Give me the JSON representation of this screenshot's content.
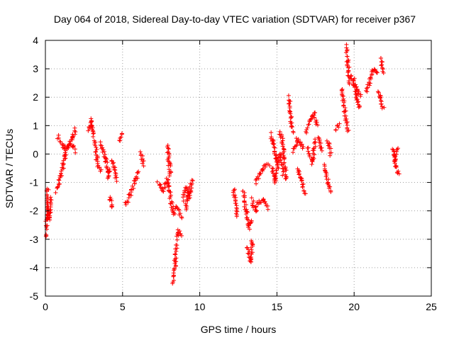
{
  "chart_data": {
    "type": "scatter",
    "title": "Day 064 of 2018, Sidereal Day-to-day VTEC variation (SDTVAR) for receiver p367",
    "xlabel": "GPS time / hours",
    "ylabel": "SDTVAR / TECUs",
    "xlim": [
      0,
      25
    ],
    "ylim": [
      -5,
      4
    ],
    "grid": true,
    "marker": "plus",
    "color": "#ff0000",
    "xticks": [
      0,
      5,
      10,
      15,
      20,
      25
    ],
    "yticks": [
      -5,
      -4,
      -3,
      -2,
      -1,
      0,
      1,
      2,
      3,
      4
    ],
    "segments": [
      {
        "x": [
          0.0,
          0.1,
          0.15
        ],
        "y": [
          -2.9,
          -2.3,
          -1.2
        ]
      },
      {
        "x": [
          0.15,
          0.25,
          0.35
        ],
        "y": [
          -1.7,
          -2.3,
          -1.5
        ]
      },
      {
        "x": [
          0.7,
          1.0,
          1.3,
          1.7,
          1.95
        ],
        "y": [
          -1.3,
          -0.8,
          0.0,
          0.5,
          0.9
        ]
      },
      {
        "x": [
          0.8,
          1.2,
          1.6,
          1.9
        ],
        "y": [
          0.6,
          0.2,
          0.4,
          0.1
        ]
      },
      {
        "x": [
          2.8,
          3.0,
          3.1
        ],
        "y": [
          0.8,
          1.2,
          0.6
        ]
      },
      {
        "x": [
          3.2,
          3.4,
          3.6
        ],
        "y": [
          0.5,
          -0.4,
          -0.6
        ]
      },
      {
        "x": [
          3.6,
          3.9,
          4.1,
          4.2
        ],
        "y": [
          0.4,
          -0.2,
          -0.8,
          -0.5
        ]
      },
      {
        "x": [
          4.2,
          4.3
        ],
        "y": [
          -1.5,
          -1.9
        ]
      },
      {
        "x": [
          4.3,
          4.5,
          4.6
        ],
        "y": [
          -0.2,
          -0.5,
          -0.9
        ]
      },
      {
        "x": [
          4.8,
          5.0
        ],
        "y": [
          0.5,
          0.7
        ]
      },
      {
        "x": [
          5.2,
          5.5,
          5.8,
          6.0
        ],
        "y": [
          -1.8,
          -1.4,
          -1.0,
          -0.6
        ]
      },
      {
        "x": [
          6.2,
          6.35
        ],
        "y": [
          0.1,
          -0.4
        ]
      },
      {
        "x": [
          7.3,
          7.6,
          7.9,
          8.1
        ],
        "y": [
          -1.0,
          -1.3,
          -0.9,
          -1.5
        ]
      },
      {
        "x": [
          7.9,
          8.0,
          8.1
        ],
        "y": [
          0.3,
          -0.2,
          -0.8
        ]
      },
      {
        "x": [
          8.1,
          8.3,
          8.5,
          8.8
        ],
        "y": [
          -1.6,
          -2.1,
          -1.9,
          -2.2
        ]
      },
      {
        "x": [
          8.3,
          8.4,
          8.5
        ],
        "y": [
          -4.5,
          -3.9,
          -3.2
        ]
      },
      {
        "x": [
          8.5,
          8.65,
          8.8
        ],
        "y": [
          -3.0,
          -2.7,
          -2.9
        ]
      },
      {
        "x": [
          8.9,
          9.1,
          9.3,
          9.5
        ],
        "y": [
          -1.6,
          -1.2,
          -1.5,
          -0.9
        ]
      },
      {
        "x": [
          9.1,
          9.3
        ],
        "y": [
          -1.9,
          -1.3
        ]
      },
      {
        "x": [
          12.2,
          12.4
        ],
        "y": [
          -1.2,
          -2.2
        ]
      },
      {
        "x": [
          12.8,
          13.0,
          13.2,
          13.4
        ],
        "y": [
          -1.3,
          -2.0,
          -2.6,
          -2.3
        ]
      },
      {
        "x": [
          13.1,
          13.3,
          13.4
        ],
        "y": [
          -3.3,
          -3.8,
          -3.0
        ]
      },
      {
        "x": [
          13.4,
          13.6,
          13.8,
          14.1,
          14.4
        ],
        "y": [
          -1.6,
          -2.0,
          -1.7,
          -1.6,
          -1.9
        ]
      },
      {
        "x": [
          13.6,
          13.9,
          14.2,
          14.5
        ],
        "y": [
          -1.0,
          -0.7,
          -0.4,
          -0.4
        ]
      },
      {
        "x": [
          14.6,
          14.8,
          15.0,
          15.2,
          15.4
        ],
        "y": [
          0.7,
          0.3,
          -0.3,
          0.0,
          -0.7
        ]
      },
      {
        "x": [
          14.7,
          14.9,
          15.1
        ],
        "y": [
          -0.5,
          -1.0,
          -0.3
        ]
      },
      {
        "x": [
          15.2,
          15.4,
          15.6
        ],
        "y": [
          0.8,
          0.3,
          -0.9
        ]
      },
      {
        "x": [
          15.8,
          15.9,
          16.0
        ],
        "y": [
          2.0,
          1.3,
          0.8
        ]
      },
      {
        "x": [
          16.1,
          16.3,
          16.5,
          16.7
        ],
        "y": [
          0.1,
          0.5,
          0.4,
          0.2
        ]
      },
      {
        "x": [
          16.3,
          16.6,
          16.8
        ],
        "y": [
          -0.5,
          -0.9,
          -1.4
        ]
      },
      {
        "x": [
          16.9,
          17.2,
          17.4,
          17.6
        ],
        "y": [
          0.8,
          1.2,
          1.4,
          1.0
        ]
      },
      {
        "x": [
          17.0,
          17.3,
          17.5
        ],
        "y": [
          0.2,
          -0.3,
          0.5
        ]
      },
      {
        "x": [
          17.7,
          17.9
        ],
        "y": [
          0.6,
          0.1
        ]
      },
      {
        "x": [
          18.1,
          18.3,
          18.5
        ],
        "y": [
          -0.4,
          -1.0,
          -1.3
        ]
      },
      {
        "x": [
          18.3,
          18.5
        ],
        "y": [
          0.5,
          0.0
        ]
      },
      {
        "x": [
          18.8,
          19.0
        ],
        "y": [
          0.8,
          1.1
        ]
      },
      {
        "x": [
          19.2,
          19.4,
          19.6
        ],
        "y": [
          2.3,
          1.5,
          0.8
        ]
      },
      {
        "x": [
          19.5,
          19.6,
          19.7
        ],
        "y": [
          3.8,
          3.2,
          2.5
        ]
      },
      {
        "x": [
          19.8,
          20.0,
          20.2,
          20.4
        ],
        "y": [
          2.8,
          2.4,
          1.9,
          1.6
        ]
      },
      {
        "x": [
          20.0,
          20.2,
          20.4
        ],
        "y": [
          2.6,
          2.3,
          2.0
        ]
      },
      {
        "x": [
          20.8,
          21.1,
          21.3,
          21.5
        ],
        "y": [
          2.2,
          2.7,
          3.0,
          2.8
        ]
      },
      {
        "x": [
          21.5,
          21.7,
          21.9
        ],
        "y": [
          2.2,
          2.0,
          1.6
        ]
      },
      {
        "x": [
          21.7,
          21.9
        ],
        "y": [
          3.4,
          2.9
        ]
      },
      {
        "x": [
          22.5,
          22.7,
          22.9
        ],
        "y": [
          0.2,
          -0.4,
          -0.7
        ]
      },
      {
        "x": [
          22.6,
          22.8
        ],
        "y": [
          -0.3,
          0.2
        ]
      }
    ]
  }
}
